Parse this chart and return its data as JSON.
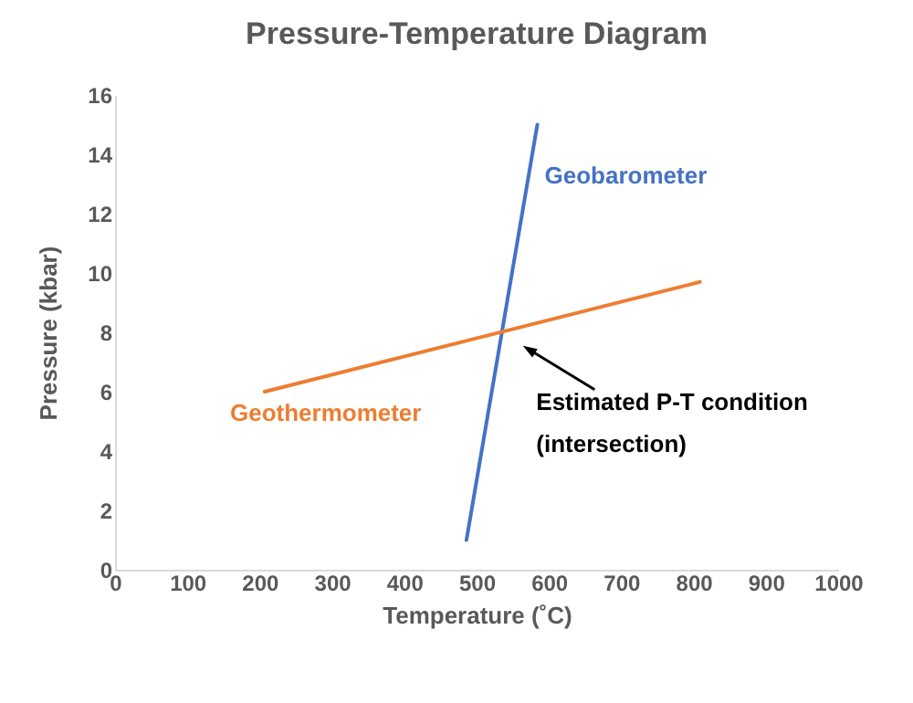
{
  "chart_data": {
    "type": "line",
    "title": "Pressure-Temperature Diagram",
    "xlabel": "Temperature (˚C)",
    "ylabel": "Pressure (kbar)",
    "xlim": [
      0,
      1000
    ],
    "xticks": [
      0,
      100,
      200,
      300,
      400,
      500,
      600,
      700,
      800,
      900,
      1000
    ],
    "ylim": [
      0,
      16
    ],
    "yticks": [
      0,
      2,
      4,
      6,
      8,
      10,
      12,
      14,
      16
    ],
    "series": [
      {
        "name": "Geobarometer",
        "color": "#4472c4",
        "x": [
          486,
          584
        ],
        "values": [
          1,
          15
        ]
      },
      {
        "name": "Geothermometer",
        "color": "#ed7d31",
        "x": [
          207,
          809
        ],
        "values": [
          6,
          9.7
        ]
      }
    ],
    "annotations": [
      {
        "text": "Estimated P-T condition\n(intersection)",
        "x": 537,
        "y": 8.1
      }
    ],
    "grid": false,
    "legend": false,
    "marker": "none",
    "line_style": "solid"
  }
}
